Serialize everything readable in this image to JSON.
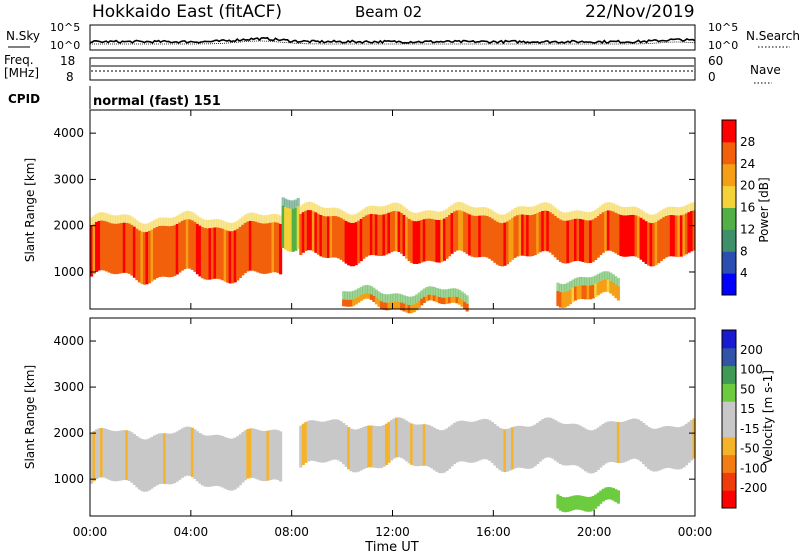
{
  "header": {
    "title": "Hokkaido East (fitACF)",
    "beam": "Beam 02",
    "date": "22/Nov/2019"
  },
  "noise_panel": {
    "left_label": "N.Sky",
    "right_label": "N.Search",
    "left_ticks": [
      "10^5",
      "10^0"
    ],
    "right_ticks": [
      "10^5",
      "10^0"
    ]
  },
  "freq_panel": {
    "label_line1": "Freq.",
    "label_line2": "[MHz]",
    "right_label": "Nave",
    "left_ticks": [
      "18",
      "8"
    ],
    "right_ticks": [
      "60",
      "0"
    ]
  },
  "cpid": {
    "label": "CPID",
    "value": "normal (fast) 151"
  },
  "colors": {
    "power_scale": [
      "#0000ff",
      "#2a4fb0",
      "#3f8f6a",
      "#52b046",
      "#f4d23a",
      "#f59f16",
      "#f2600c",
      "#ff0000"
    ],
    "velocity_scale": [
      "#ff0000",
      "#f03c0a",
      "#f47c12",
      "#f5b32a",
      "#c8c8c8",
      "#c8c8c8",
      "#6dcb3f",
      "#3f9a55",
      "#3154a6",
      "#1a1ad0"
    ]
  },
  "chart_data": [
    {
      "type": "heatmap",
      "title": "",
      "xlabel": "",
      "ylabel": "Slant Range [km]",
      "xlim": [
        "00:00",
        "00:00"
      ],
      "ylim": [
        200,
        4500
      ],
      "y_ticks": [
        "1000",
        "2000",
        "3000",
        "4000"
      ],
      "colorbar": {
        "label": "Power [dB]",
        "ticks": [
          "4",
          "8",
          "12",
          "16",
          "20",
          "24",
          "28"
        ],
        "range": [
          0,
          30
        ]
      },
      "echo_bands": [
        {
          "t_start": 0.0,
          "t_end": 7.6,
          "range_low": 900,
          "range_high": 2000,
          "power_db": 28
        },
        {
          "t_start": 7.6,
          "t_end": 8.3,
          "range_low": 1600,
          "range_high": 2500,
          "power_db": 18
        },
        {
          "t_start": 8.3,
          "t_end": 24.0,
          "range_low": 1300,
          "range_high": 2200,
          "power_db": 28
        },
        {
          "t_start": 18.5,
          "t_end": 21.0,
          "range_low": 400,
          "range_high": 700,
          "power_db": 24
        },
        {
          "t_start": 10.0,
          "t_end": 15.0,
          "range_low": 250,
          "range_high": 400,
          "power_db": 26
        }
      ]
    },
    {
      "type": "heatmap",
      "title": "",
      "xlabel": "Time UT",
      "ylabel": "Slant Range [km]",
      "xlim": [
        "00:00",
        "00:00"
      ],
      "ylim": [
        200,
        4500
      ],
      "x_ticks": [
        "00:00",
        "04:00",
        "08:00",
        "12:00",
        "16:00",
        "20:00",
        "00:00"
      ],
      "y_ticks": [
        "1000",
        "2000",
        "3000",
        "4000"
      ],
      "colorbar": {
        "label": "Velocity [m s-1]",
        "ticks": [
          "200",
          "100",
          "50",
          "15",
          "-15",
          "-50",
          "-100",
          "-200"
        ],
        "range": [
          -250,
          250
        ]
      },
      "echo_bands": [
        {
          "t_start": 0.0,
          "t_end": 7.6,
          "range_low": 900,
          "range_high": 2000,
          "velocity": 0
        },
        {
          "t_start": 8.3,
          "t_end": 24.0,
          "range_low": 1300,
          "range_high": 2200,
          "velocity": 0
        },
        {
          "t_start": 18.5,
          "t_end": 21.0,
          "range_low": 400,
          "range_high": 700,
          "velocity": 60
        }
      ]
    }
  ]
}
